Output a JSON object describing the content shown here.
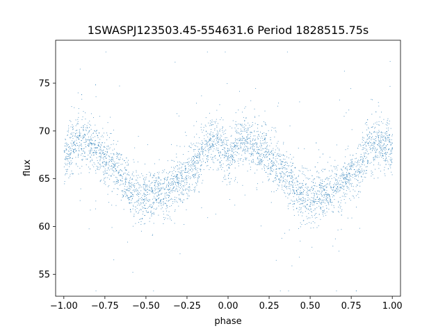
{
  "chart_data": {
    "type": "scatter",
    "title": "1SWASPJ123503.45-554631.6 Period 1828515.75s",
    "xlabel": "phase",
    "ylabel": "flux",
    "xlim": [
      -1.05,
      1.05
    ],
    "ylim": [
      52.7,
      79.5
    ],
    "x_ticks": [
      -1.0,
      -0.75,
      -0.5,
      -0.25,
      0.0,
      0.25,
      0.5,
      0.75,
      1.0
    ],
    "x_tick_labels": [
      "−1.00",
      "−0.75",
      "−0.50",
      "−0.25",
      "0.00",
      "0.25",
      "0.50",
      "0.75",
      "1.00"
    ],
    "y_ticks": [
      55,
      60,
      65,
      70,
      75
    ],
    "y_tick_labels": [
      "55",
      "60",
      "65",
      "70",
      "75"
    ],
    "grid": false,
    "point_color": "#1f77b4",
    "series": [
      {
        "phase_range": [
          -1.0,
          1.0
        ],
        "symmetry": "phase-folded; curve repeats with period 1.0 in phase",
        "trend_x": [
          0.0,
          0.05,
          0.1,
          0.15,
          0.2,
          0.25,
          0.3,
          0.35,
          0.4,
          0.45,
          0.5,
          0.55,
          0.6,
          0.65,
          0.7,
          0.75,
          0.8,
          0.85,
          0.9,
          0.95,
          1.0
        ],
        "trend_y": [
          67.0,
          68.5,
          69.0,
          68.5,
          68.0,
          67.0,
          66.5,
          65.5,
          64.0,
          63.3,
          63.0,
          63.5,
          63.5,
          64.0,
          64.5,
          65.5,
          66.5,
          68.0,
          68.8,
          68.5,
          68.0
        ]
      }
    ]
  }
}
